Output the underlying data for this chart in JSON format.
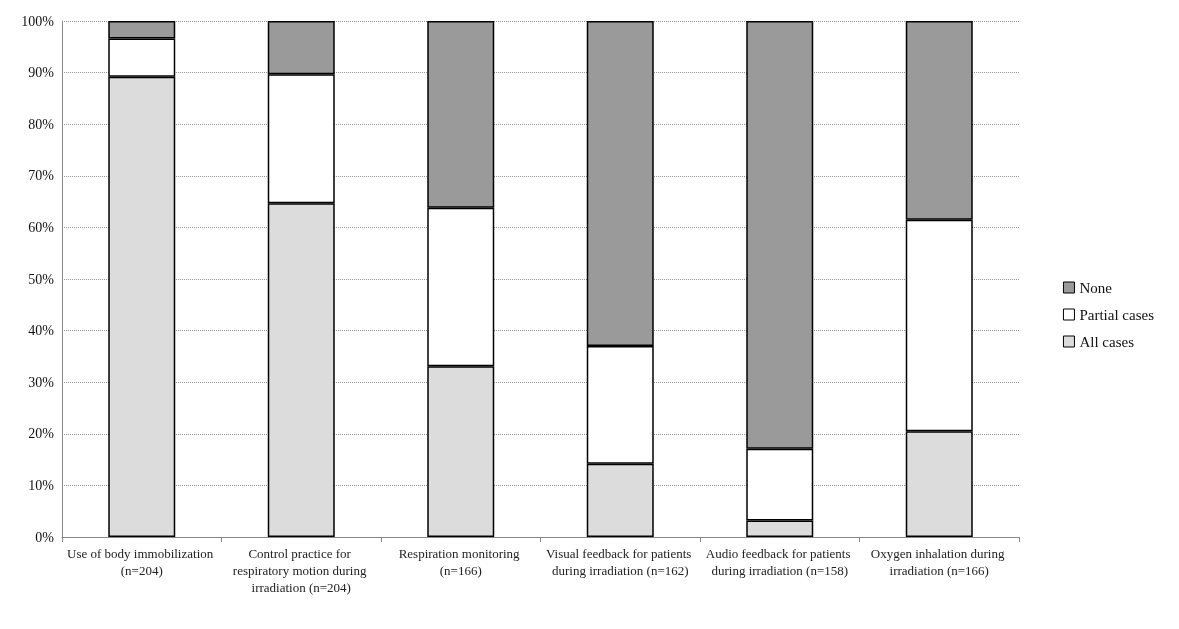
{
  "chart_data": {
    "type": "bar",
    "stacked": true,
    "categories": [
      "Use of body immobilization (n=204)",
      "Control practice for respiratory motion during irradiation (n=204)",
      "Respiration monitoring (n=166)",
      "Visual feedback for patients during irradiation (n=162)",
      "Audio feedback for patients during irradiation (n=158)",
      "Oxygen inhalation during irradiation (n=166)"
    ],
    "series": [
      {
        "name": "All cases",
        "color": "#dcdcdc",
        "values": [
          89.2,
          64.7,
          33.1,
          14.2,
          3.2,
          20.5
        ]
      },
      {
        "name": "Partial cases",
        "color": "#ffffff",
        "values": [
          7.4,
          25.0,
          30.7,
          22.8,
          13.9,
          41.0
        ]
      },
      {
        "name": "None",
        "color": "#9a9a9a",
        "values": [
          3.4,
          10.3,
          36.2,
          63.0,
          82.9,
          38.5
        ]
      }
    ],
    "ylim": [
      0,
      100
    ],
    "yticks": [
      {
        "value": 0,
        "label": "0%"
      },
      {
        "value": 10,
        "label": "10%"
      },
      {
        "value": 20,
        "label": "20%"
      },
      {
        "value": 30,
        "label": "30%"
      },
      {
        "value": 40,
        "label": "40%"
      },
      {
        "value": 50,
        "label": "50%"
      },
      {
        "value": 60,
        "label": "60%"
      },
      {
        "value": 70,
        "label": "70%"
      },
      {
        "value": 80,
        "label": "80%"
      },
      {
        "value": 90,
        "label": "90%"
      },
      {
        "value": 100,
        "label": "100%"
      }
    ],
    "grid": "y",
    "legend": "right"
  }
}
